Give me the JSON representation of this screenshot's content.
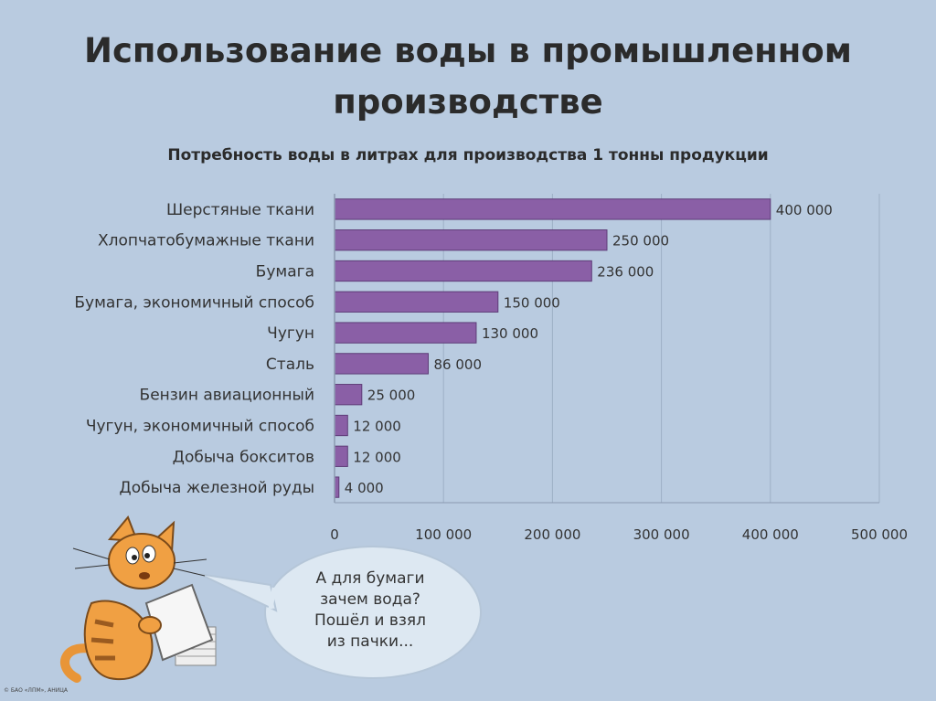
{
  "slide": {
    "title_line1": "Использование воды в промышленном",
    "title_line2": "производстве"
  },
  "chart_data": {
    "type": "bar",
    "orientation": "horizontal",
    "title": "Потребность воды в литрах для производства 1 тонны продукции",
    "categories": [
      "Шерстяные ткани",
      "Хлопчатобумажные ткани",
      "Бумага",
      "Бумага, экономичный способ",
      "Чугун",
      "Сталь",
      "Бензин авиационный",
      "Чугун, экономичный способ",
      "Добыча бокситов",
      "Добыча железной руды"
    ],
    "values": [
      400000,
      250000,
      236000,
      150000,
      130000,
      86000,
      25000,
      12000,
      12000,
      4000
    ],
    "value_labels": [
      "400 000",
      "250 000",
      "236 000",
      "150 000",
      "130 000",
      "86 000",
      "25 000",
      "12 000",
      "12 000",
      "4 000"
    ],
    "xlim": [
      0,
      500000
    ],
    "xticks": [
      0,
      100000,
      200000,
      300000,
      400000,
      500000
    ],
    "xtick_labels": [
      "0",
      "100 000",
      "200 000",
      "300 000",
      "400 000",
      "500 000"
    ],
    "grid": true,
    "bar_color": "#8a5fa6"
  },
  "bubble": {
    "line1": "А для бумаги",
    "line2": "зачем вода?",
    "line3": "Пошёл и взял",
    "line4": "из пачки..."
  },
  "copyright": "© БАО «ЛПМ», АНИЦА",
  "colors": {
    "background": "#b9cbe0",
    "bar": "#8a5fa6",
    "cat": "#f0a043"
  }
}
